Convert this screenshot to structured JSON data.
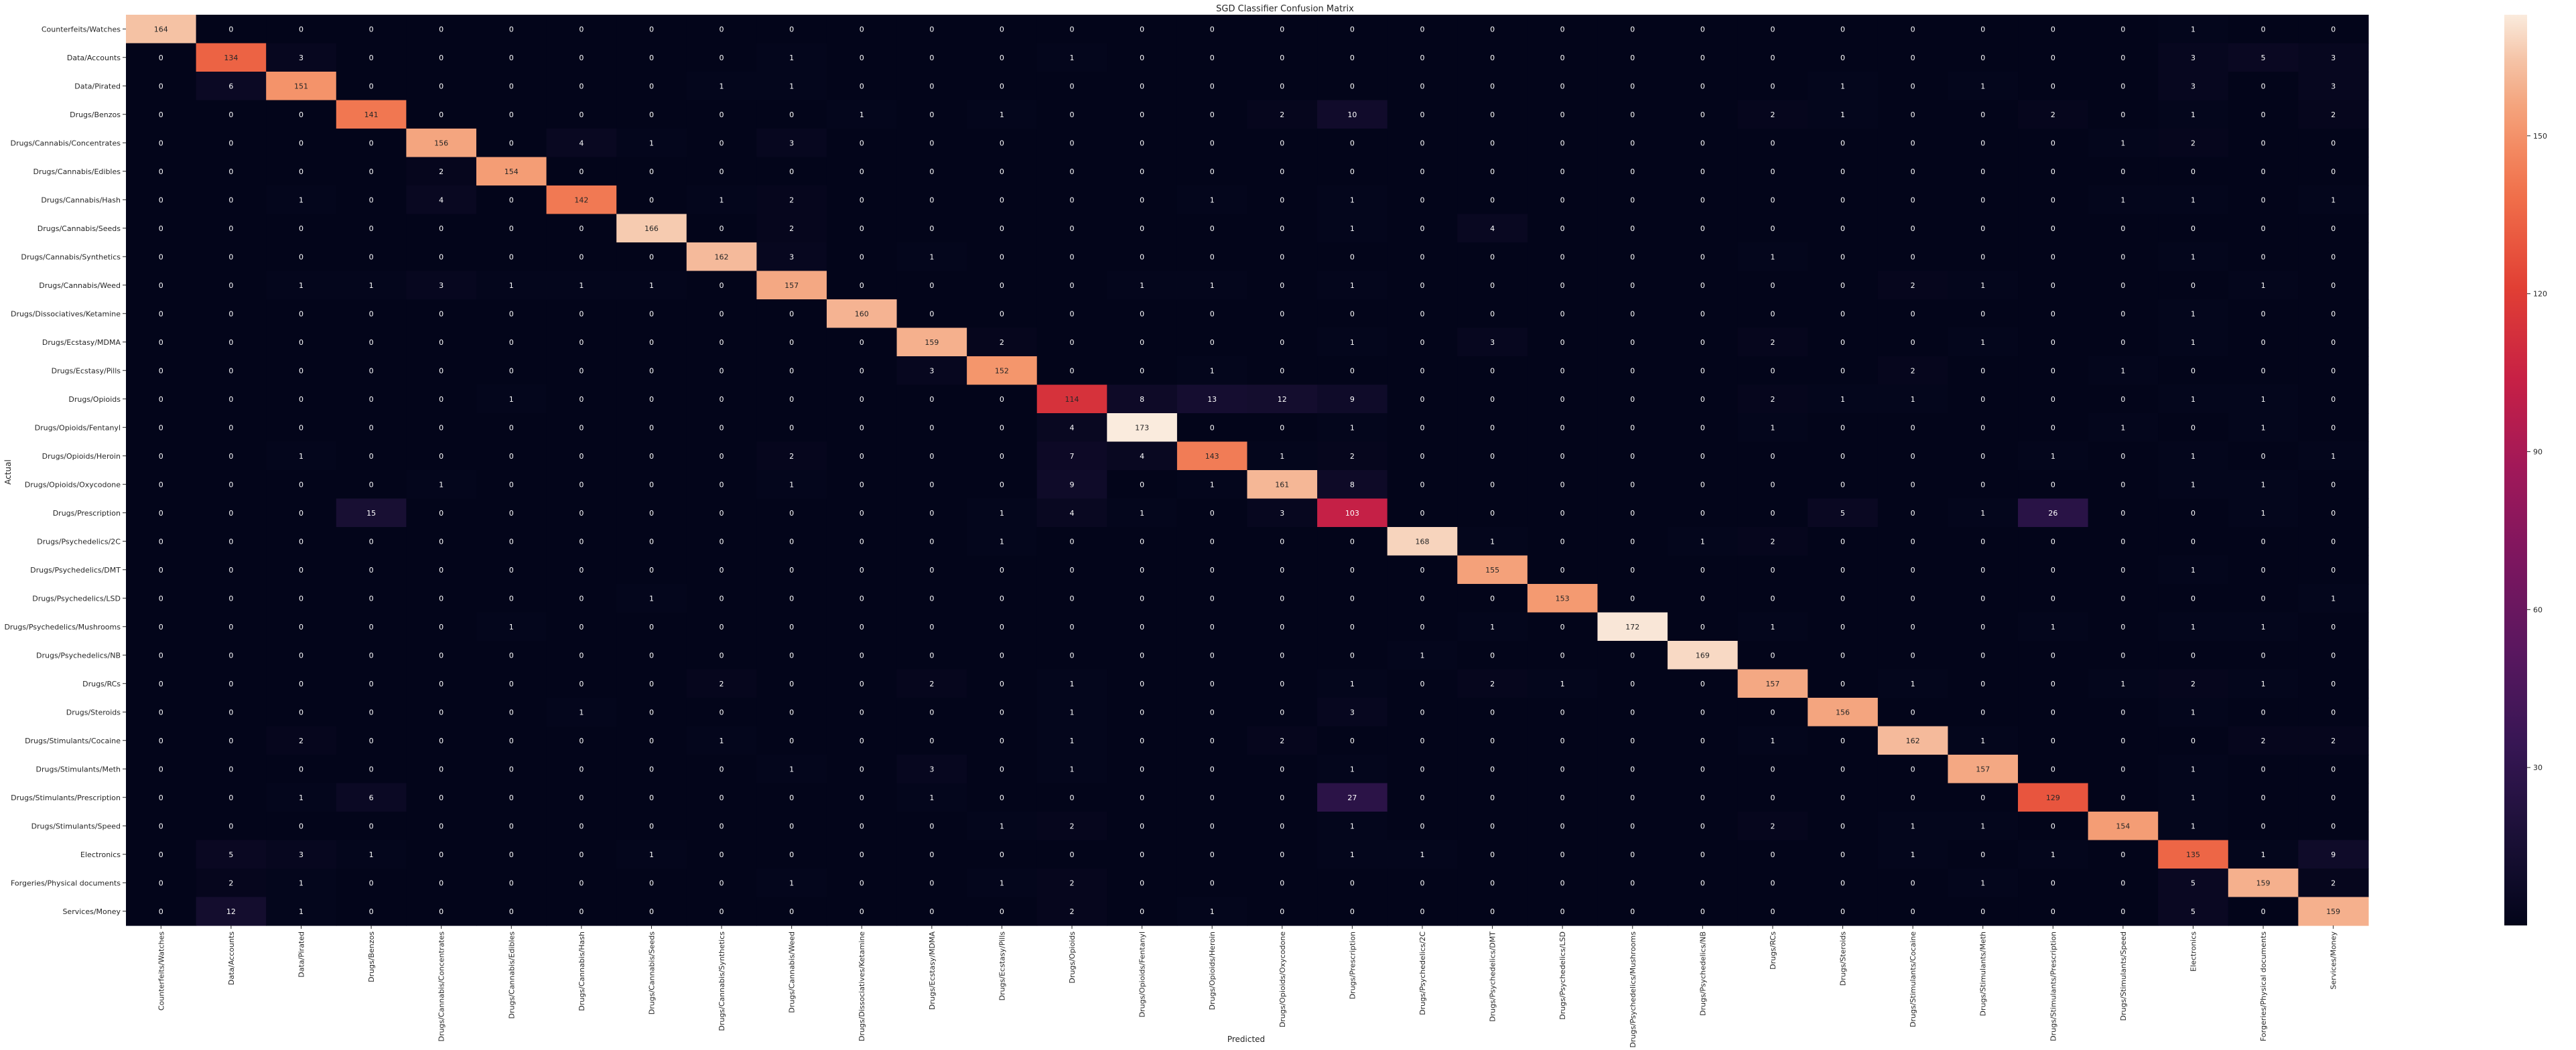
{
  "chart_data": {
    "type": "heatmap",
    "title": "SGD Classifier Confusion Matrix",
    "xlabel": "Predicted",
    "ylabel": "Actual",
    "labels": [
      "Counterfeits/Watches",
      "Data/Accounts",
      "Data/Pirated",
      "Drugs/Benzos",
      "Drugs/Cannabis/Concentrates",
      "Drugs/Cannabis/Edibles",
      "Drugs/Cannabis/Hash",
      "Drugs/Cannabis/Seeds",
      "Drugs/Cannabis/Synthetics",
      "Drugs/Cannabis/Weed",
      "Drugs/Dissociatives/Ketamine",
      "Drugs/Ecstasy/MDMA",
      "Drugs/Ecstasy/Pills",
      "Drugs/Opioids",
      "Drugs/Opioids/Fentanyl",
      "Drugs/Opioids/Heroin",
      "Drugs/Opioids/Oxycodone",
      "Drugs/Prescription",
      "Drugs/Psychedelics/2C",
      "Drugs/Psychedelics/DMT",
      "Drugs/Psychedelics/LSD",
      "Drugs/Psychedelics/Mushrooms",
      "Drugs/Psychedelics/NB",
      "Drugs/RCs",
      "Drugs/Steroids",
      "Drugs/Stimulants/Cocaine",
      "Drugs/Stimulants/Meth",
      "Drugs/Stimulants/Prescription",
      "Drugs/Stimulants/Speed",
      "Electronics",
      "Forgeries/Physical documents",
      "Services/Money"
    ],
    "matrix": [
      [
        164,
        0,
        0,
        0,
        0,
        0,
        0,
        0,
        0,
        0,
        0,
        0,
        0,
        0,
        0,
        0,
        0,
        0,
        0,
        0,
        0,
        0,
        0,
        0,
        0,
        0,
        0,
        0,
        0,
        1,
        0,
        0
      ],
      [
        0,
        134,
        3,
        0,
        0,
        0,
        0,
        0,
        0,
        1,
        0,
        0,
        0,
        1,
        0,
        0,
        0,
        0,
        0,
        0,
        0,
        0,
        0,
        0,
        0,
        0,
        0,
        0,
        0,
        3,
        5,
        3
      ],
      [
        0,
        6,
        151,
        0,
        0,
        0,
        0,
        0,
        1,
        1,
        0,
        0,
        0,
        0,
        0,
        0,
        0,
        0,
        0,
        0,
        0,
        0,
        0,
        0,
        1,
        0,
        1,
        0,
        0,
        3,
        0,
        3
      ],
      [
        0,
        0,
        0,
        141,
        0,
        0,
        0,
        0,
        0,
        0,
        1,
        0,
        1,
        0,
        0,
        0,
        2,
        10,
        0,
        0,
        0,
        0,
        0,
        2,
        1,
        0,
        0,
        2,
        0,
        1,
        0,
        2
      ],
      [
        0,
        0,
        0,
        0,
        156,
        0,
        4,
        1,
        0,
        3,
        0,
        0,
        0,
        0,
        0,
        0,
        0,
        0,
        0,
        0,
        0,
        0,
        0,
        0,
        0,
        0,
        0,
        0,
        1,
        2,
        0,
        0
      ],
      [
        0,
        0,
        0,
        0,
        2,
        154,
        0,
        0,
        0,
        0,
        0,
        0,
        0,
        0,
        0,
        0,
        0,
        0,
        0,
        0,
        0,
        0,
        0,
        0,
        0,
        0,
        0,
        0,
        0,
        0,
        0,
        0
      ],
      [
        0,
        0,
        1,
        0,
        4,
        0,
        142,
        0,
        1,
        2,
        0,
        0,
        0,
        0,
        0,
        1,
        0,
        1,
        0,
        0,
        0,
        0,
        0,
        0,
        0,
        0,
        0,
        0,
        1,
        1,
        0,
        1
      ],
      [
        0,
        0,
        0,
        0,
        0,
        0,
        0,
        166,
        0,
        2,
        0,
        0,
        0,
        0,
        0,
        0,
        0,
        1,
        0,
        4,
        0,
        0,
        0,
        0,
        0,
        0,
        0,
        0,
        0,
        0,
        0,
        0
      ],
      [
        0,
        0,
        0,
        0,
        0,
        0,
        0,
        0,
        162,
        3,
        0,
        1,
        0,
        0,
        0,
        0,
        0,
        0,
        0,
        0,
        0,
        0,
        0,
        1,
        0,
        0,
        0,
        0,
        0,
        1,
        0,
        0
      ],
      [
        0,
        0,
        1,
        1,
        3,
        1,
        1,
        1,
        0,
        157,
        0,
        0,
        0,
        0,
        1,
        1,
        0,
        1,
        0,
        0,
        0,
        0,
        0,
        0,
        0,
        2,
        1,
        0,
        0,
        0,
        1,
        0
      ],
      [
        0,
        0,
        0,
        0,
        0,
        0,
        0,
        0,
        0,
        0,
        160,
        0,
        0,
        0,
        0,
        0,
        0,
        0,
        0,
        0,
        0,
        0,
        0,
        0,
        0,
        0,
        0,
        0,
        0,
        1,
        0,
        0
      ],
      [
        0,
        0,
        0,
        0,
        0,
        0,
        0,
        0,
        0,
        0,
        0,
        159,
        2,
        0,
        0,
        0,
        0,
        1,
        0,
        3,
        0,
        0,
        0,
        2,
        0,
        0,
        1,
        0,
        0,
        1,
        0,
        0
      ],
      [
        0,
        0,
        0,
        0,
        0,
        0,
        0,
        0,
        0,
        0,
        0,
        3,
        152,
        0,
        0,
        1,
        0,
        0,
        0,
        0,
        0,
        0,
        0,
        0,
        0,
        2,
        0,
        0,
        1,
        0,
        0,
        0
      ],
      [
        0,
        0,
        0,
        0,
        0,
        1,
        0,
        0,
        0,
        0,
        0,
        0,
        0,
        114,
        8,
        13,
        12,
        9,
        0,
        0,
        0,
        0,
        0,
        2,
        1,
        1,
        0,
        0,
        0,
        1,
        1,
        0
      ],
      [
        0,
        0,
        0,
        0,
        0,
        0,
        0,
        0,
        0,
        0,
        0,
        0,
        0,
        4,
        173,
        0,
        0,
        1,
        0,
        0,
        0,
        0,
        0,
        1,
        0,
        0,
        0,
        0,
        1,
        0,
        1,
        0
      ],
      [
        0,
        0,
        1,
        0,
        0,
        0,
        0,
        0,
        0,
        2,
        0,
        0,
        0,
        7,
        4,
        143,
        1,
        2,
        0,
        0,
        0,
        0,
        0,
        0,
        0,
        0,
        0,
        1,
        0,
        1,
        0,
        1
      ],
      [
        0,
        0,
        0,
        0,
        1,
        0,
        0,
        0,
        0,
        1,
        0,
        0,
        0,
        9,
        0,
        1,
        161,
        8,
        0,
        0,
        0,
        0,
        0,
        0,
        0,
        0,
        0,
        0,
        0,
        1,
        1,
        0
      ],
      [
        0,
        0,
        0,
        15,
        0,
        0,
        0,
        0,
        0,
        0,
        0,
        0,
        1,
        4,
        1,
        0,
        3,
        103,
        0,
        0,
        0,
        0,
        0,
        0,
        5,
        0,
        1,
        26,
        0,
        0,
        1,
        0
      ],
      [
        0,
        0,
        0,
        0,
        0,
        0,
        0,
        0,
        0,
        0,
        0,
        0,
        1,
        0,
        0,
        0,
        0,
        0,
        168,
        1,
        0,
        0,
        1,
        2,
        0,
        0,
        0,
        0,
        0,
        0,
        0,
        0
      ],
      [
        0,
        0,
        0,
        0,
        0,
        0,
        0,
        0,
        0,
        0,
        0,
        0,
        0,
        0,
        0,
        0,
        0,
        0,
        0,
        155,
        0,
        0,
        0,
        0,
        0,
        0,
        0,
        0,
        0,
        1,
        0,
        0
      ],
      [
        0,
        0,
        0,
        0,
        0,
        0,
        0,
        1,
        0,
        0,
        0,
        0,
        0,
        0,
        0,
        0,
        0,
        0,
        0,
        0,
        153,
        0,
        0,
        0,
        0,
        0,
        0,
        0,
        0,
        0,
        0,
        1
      ],
      [
        0,
        0,
        0,
        0,
        0,
        1,
        0,
        0,
        0,
        0,
        0,
        0,
        0,
        0,
        0,
        0,
        0,
        0,
        0,
        1,
        0,
        172,
        0,
        1,
        0,
        0,
        0,
        1,
        0,
        1,
        1,
        0
      ],
      [
        0,
        0,
        0,
        0,
        0,
        0,
        0,
        0,
        0,
        0,
        0,
        0,
        0,
        0,
        0,
        0,
        0,
        0,
        1,
        0,
        0,
        0,
        169,
        0,
        0,
        0,
        0,
        0,
        0,
        0,
        0,
        0
      ],
      [
        0,
        0,
        0,
        0,
        0,
        0,
        0,
        0,
        2,
        0,
        0,
        2,
        0,
        1,
        0,
        0,
        0,
        1,
        0,
        2,
        1,
        0,
        0,
        157,
        0,
        1,
        0,
        0,
        1,
        2,
        1,
        0
      ],
      [
        0,
        0,
        0,
        0,
        0,
        0,
        1,
        0,
        0,
        0,
        0,
        0,
        0,
        1,
        0,
        0,
        0,
        3,
        0,
        0,
        0,
        0,
        0,
        0,
        156,
        0,
        0,
        0,
        0,
        1,
        0,
        0
      ],
      [
        0,
        0,
        2,
        0,
        0,
        0,
        0,
        0,
        1,
        0,
        0,
        0,
        0,
        1,
        0,
        0,
        2,
        0,
        0,
        0,
        0,
        0,
        0,
        1,
        0,
        162,
        1,
        0,
        0,
        0,
        2,
        2
      ],
      [
        0,
        0,
        0,
        0,
        0,
        0,
        0,
        0,
        0,
        1,
        0,
        3,
        0,
        1,
        0,
        0,
        0,
        1,
        0,
        0,
        0,
        0,
        0,
        0,
        0,
        0,
        157,
        0,
        0,
        1,
        0,
        0
      ],
      [
        0,
        0,
        1,
        6,
        0,
        0,
        0,
        0,
        0,
        0,
        0,
        1,
        0,
        0,
        0,
        0,
        0,
        27,
        0,
        0,
        0,
        0,
        0,
        0,
        0,
        0,
        0,
        129,
        0,
        1,
        0,
        0
      ],
      [
        0,
        0,
        0,
        0,
        0,
        0,
        0,
        0,
        0,
        0,
        0,
        0,
        1,
        2,
        0,
        0,
        0,
        1,
        0,
        0,
        0,
        0,
        0,
        2,
        0,
        1,
        1,
        0,
        154,
        1,
        0,
        0
      ],
      [
        0,
        5,
        3,
        1,
        0,
        0,
        0,
        1,
        0,
        0,
        0,
        0,
        0,
        0,
        0,
        0,
        0,
        1,
        1,
        0,
        0,
        0,
        0,
        0,
        0,
        1,
        0,
        1,
        0,
        135,
        1,
        9
      ],
      [
        0,
        2,
        1,
        0,
        0,
        0,
        0,
        0,
        0,
        1,
        0,
        0,
        1,
        2,
        0,
        0,
        0,
        0,
        0,
        0,
        0,
        0,
        0,
        0,
        0,
        0,
        1,
        0,
        0,
        5,
        159,
        2
      ],
      [
        0,
        12,
        1,
        0,
        0,
        0,
        0,
        0,
        0,
        0,
        0,
        0,
        0,
        2,
        0,
        1,
        0,
        0,
        0,
        0,
        0,
        0,
        0,
        0,
        0,
        0,
        0,
        0,
        0,
        5,
        0,
        159
      ]
    ],
    "colorbar_ticks": [
      30,
      60,
      90,
      120,
      150
    ],
    "colormap": "rocket",
    "vmin": 0,
    "vmax": 173
  }
}
